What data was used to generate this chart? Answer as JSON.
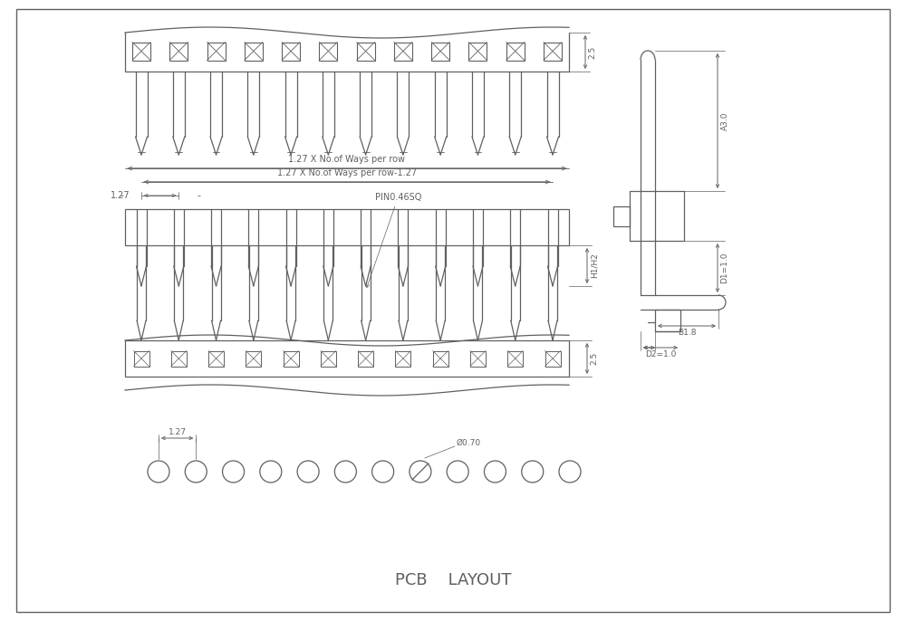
{
  "line_color": "#606060",
  "title": "PCB    LAYOUT",
  "title_fontsize": 12,
  "n_pins": 12,
  "annotations": {
    "top_dim": "2.5",
    "front_dim1": "1.27 X No.of Ways per row",
    "front_dim2": "1.27 X No.of Ways per row-1.27",
    "front_dim3": "1.27",
    "front_dim4": "PIN0.46SQ",
    "front_dim5": "H1/H2",
    "front_dim6": "2.5",
    "pcb_dim1": "1.27",
    "pcb_dim2": "Ø0.70",
    "side_A": "A3.0",
    "side_D1": "D1=1.0",
    "side_B": "B1.8",
    "side_D2": "D2=1.0"
  }
}
